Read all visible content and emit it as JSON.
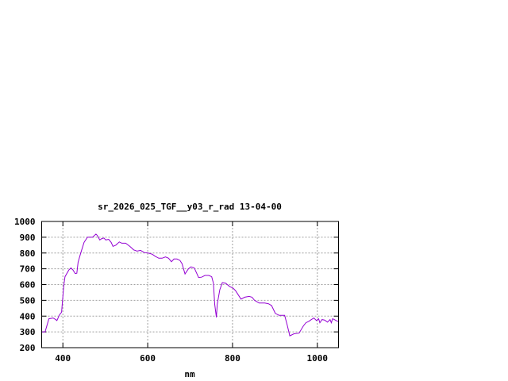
{
  "chart_data": {
    "type": "line",
    "title": "sr_2026_025_TGF__y03_r_rad 13-04-00",
    "xlabel": "nm",
    "ylabel": "",
    "xlim": [
      350,
      1050
    ],
    "ylim": [
      200,
      1000
    ],
    "xticks": [
      400,
      600,
      800,
      1000
    ],
    "yticks": [
      200,
      300,
      400,
      500,
      600,
      700,
      800,
      900,
      1000
    ],
    "grid": true,
    "line_color": "#9400d3",
    "series": [
      {
        "x": [
          350,
          358,
          367,
          377,
          383,
          386,
          392,
          397,
          402,
          405,
          414,
          419,
          424,
          429,
          433,
          436,
          442,
          450,
          458,
          470,
          478,
          481,
          487,
          492,
          497,
          501,
          508,
          514,
          518,
          525,
          533,
          539,
          548,
          558,
          567,
          575,
          583,
          592,
          601,
          611,
          617,
          626,
          634,
          642,
          649,
          656,
          662,
          669,
          676,
          681,
          688,
          696,
          702,
          710,
          720,
          727,
          735,
          744,
          751,
          755,
          758,
          762,
          764,
          770,
          776,
          784,
          793,
          801,
          807,
          820,
          829,
          839,
          846,
          852,
          863,
          876,
          885,
          892,
          901,
          910,
          923,
          929,
          935,
          945,
          957,
          967,
          973,
          980,
          986,
          992,
          998,
          1003,
          1006,
          1011,
          1017,
          1024,
          1030,
          1033,
          1036,
          1040,
          1044,
          1050
        ],
        "y": [
          300,
          300,
          383,
          388,
          378,
          372,
          408,
          425,
          592,
          650,
          692,
          705,
          692,
          670,
          672,
          742,
          800,
          867,
          900,
          900,
          920,
          912,
          883,
          892,
          895,
          883,
          887,
          867,
          842,
          850,
          870,
          862,
          862,
          842,
          820,
          812,
          817,
          803,
          800,
          792,
          780,
          767,
          767,
          775,
          767,
          745,
          762,
          762,
          753,
          733,
          667,
          700,
          712,
          705,
          645,
          647,
          658,
          658,
          650,
          608,
          475,
          392,
          475,
          567,
          612,
          608,
          588,
          578,
          562,
          508,
          520,
          525,
          520,
          500,
          483,
          483,
          478,
          467,
          417,
          405,
          405,
          342,
          275,
          288,
          292,
          338,
          358,
          367,
          378,
          388,
          372,
          383,
          358,
          378,
          375,
          362,
          378,
          358,
          383,
          378,
          372,
          365
        ]
      }
    ]
  }
}
